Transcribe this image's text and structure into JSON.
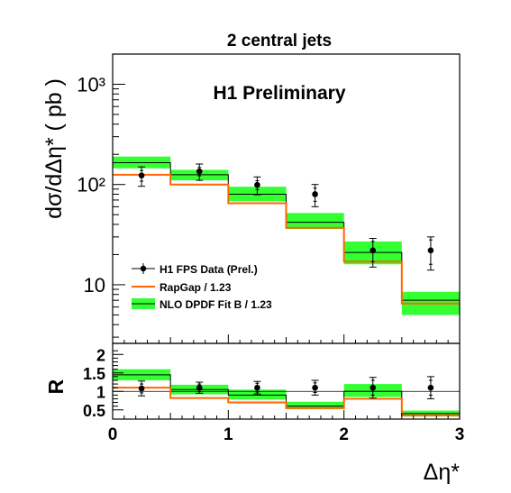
{
  "chart_data": [
    {
      "type": "step",
      "title": "2 central jets",
      "annotation": "H1 Preliminary",
      "ylabel": "dσ/dΔη* ( pb )",
      "yscale": "log",
      "ylim": [
        2.6,
        2000
      ],
      "xlim": [
        0,
        3
      ],
      "y_ticks": [
        {
          "v": 10,
          "label": "10"
        },
        {
          "v": 100,
          "label": "10²"
        },
        {
          "v": 1000,
          "label": "10³"
        }
      ],
      "bin_edges": [
        0,
        0.5,
        1,
        1.5,
        2,
        2.5,
        3
      ],
      "data": {
        "name": "H1 FPS Data (Prel.)",
        "x": [
          0.25,
          0.75,
          1.25,
          1.75,
          2.25,
          2.75
        ],
        "y": [
          123,
          135,
          99,
          80,
          22,
          22
        ],
        "stat_err_low": [
          15,
          13,
          10,
          12,
          5,
          6
        ],
        "stat_err_high": [
          15,
          13,
          10,
          12,
          5,
          6
        ],
        "tot_err_low": [
          27,
          25,
          20,
          20,
          7,
          8
        ],
        "tot_err_high": [
          27,
          25,
          20,
          20,
          7,
          8
        ]
      },
      "rapgap": {
        "name": "RapGap / 1.23",
        "y": [
          125,
          100,
          65,
          37,
          17,
          6.5
        ],
        "color": "#ff6600"
      },
      "nlo": {
        "name": "NLO DPDF Fit B / 1.23",
        "central": [
          165,
          125,
          80,
          42,
          21,
          7
        ],
        "low": [
          145,
          110,
          68,
          36,
          16,
          5
        ],
        "high": [
          190,
          140,
          95,
          52,
          27,
          8.5
        ],
        "band_color": "#33ff33"
      },
      "legend_placement": "lower-left"
    },
    {
      "type": "step",
      "ylabel": "R",
      "xlabel": "Δη*",
      "ylim": [
        0.25,
        2.3
      ],
      "xlim": [
        0,
        3
      ],
      "y_ticks": [
        0.5,
        1,
        1.5,
        2
      ],
      "y_tick_labels": [
        "0.5",
        "1",
        "1.5",
        "2"
      ],
      "x_ticks": [
        0,
        1,
        2,
        3
      ],
      "x_tick_labels": [
        "0",
        "1",
        "2",
        "3"
      ],
      "reference_line": 1,
      "data": {
        "x": [
          0.25,
          0.75,
          1.25,
          1.75,
          2.25,
          2.75
        ],
        "y": [
          1.08,
          1.1,
          1.1,
          1.1,
          1.1,
          1.1
        ],
        "stat_err": [
          0.12,
          0.1,
          0.12,
          0.13,
          0.2,
          0.2
        ],
        "tot_err": [
          0.2,
          0.15,
          0.17,
          0.2,
          0.28,
          0.3
        ]
      },
      "rapgap_ratio": [
        1.1,
        0.82,
        0.7,
        0.55,
        0.8,
        0.35
      ],
      "nlo_ratio": {
        "central": [
          1.45,
          1.05,
          0.9,
          0.6,
          1.0,
          0.4
        ],
        "low": [
          1.3,
          0.92,
          0.78,
          0.52,
          0.85,
          0.32
        ],
        "high": [
          1.6,
          1.18,
          1.05,
          0.72,
          1.2,
          0.48
        ]
      }
    }
  ]
}
